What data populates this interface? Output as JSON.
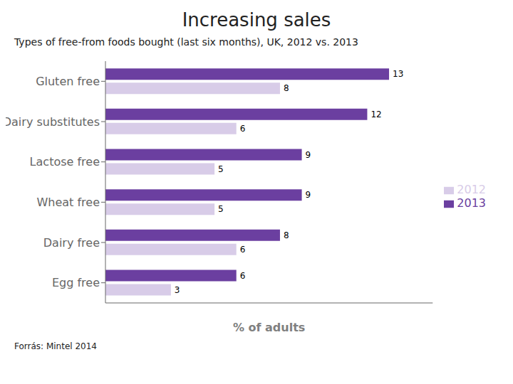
{
  "chart_data": {
    "type": "bar",
    "orientation": "horizontal",
    "title": "Increasing sales",
    "subtitle": "Types of free-from foods bought (last six months), UK, 2012 vs. 2013",
    "x_label": "% of adults",
    "annotations": [
      "Forrás: Mintel 2014"
    ],
    "categories": [
      "Gluten free",
      "Dairy substitutes",
      "Lactose free",
      "Wheat free",
      "Dairy free",
      "Egg free"
    ],
    "series": [
      {
        "name": "2013",
        "color": "#6B3FA0",
        "values": [
          13,
          12,
          9,
          9,
          8,
          6
        ]
      },
      {
        "name": "2012",
        "color": "#D8CCE8",
        "values": [
          8,
          6,
          5,
          5,
          6,
          3
        ]
      }
    ],
    "xlim": [
      0,
      15
    ],
    "data_labels": true,
    "tick_labels": "y",
    "legend": "right",
    "grid": false
  }
}
